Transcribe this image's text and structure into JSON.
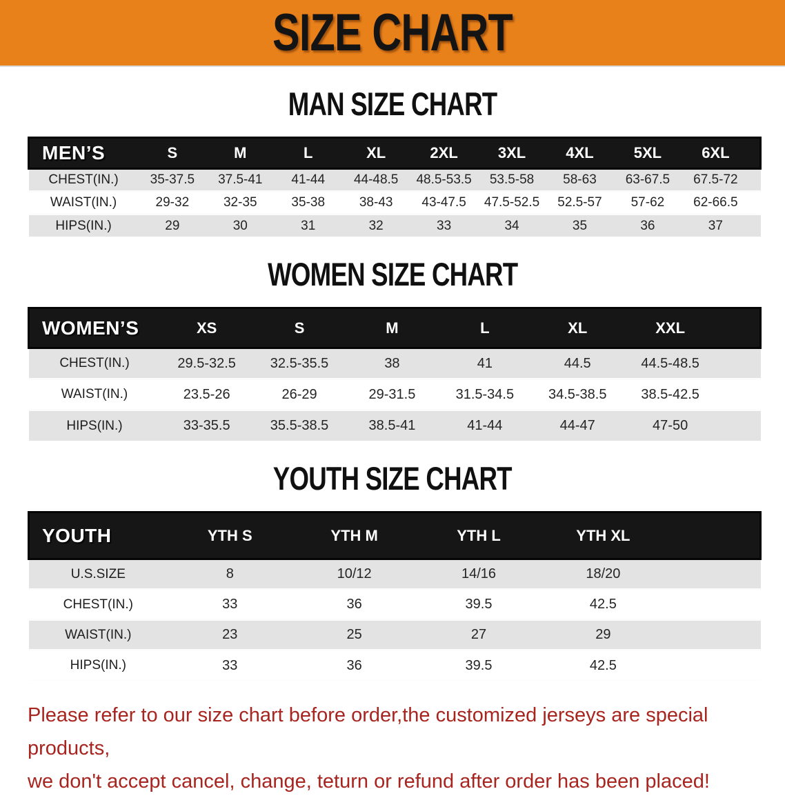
{
  "banner": {
    "title": "SIZE CHART"
  },
  "colors": {
    "banner_bg": "#E8811A",
    "banner_text": "#141414",
    "header_bar_bg": "#161616",
    "stripe_gray": "#e3e3e3",
    "disclaimer_red": "#A8241F"
  },
  "sections": [
    {
      "name": "mens",
      "heading": "MAN SIZE CHART",
      "corner_label": "MEN’S",
      "columns": [
        "S",
        "M",
        "L",
        "XL",
        "2XL",
        "3XL",
        "4XL",
        "5XL",
        "6XL"
      ],
      "rows": [
        {
          "label": "CHEST(IN.)",
          "values": [
            "35-37.5",
            "37.5-41",
            "41-44",
            "44-48.5",
            "48.5-53.5",
            "53.5-58",
            "58-63",
            "63-67.5",
            "67.5-72"
          ]
        },
        {
          "label": "WAIST(IN.)",
          "values": [
            "29-32",
            "32-35",
            "35-38",
            "38-43",
            "43-47.5",
            "47.5-52.5",
            "52.5-57",
            "57-62",
            "62-66.5"
          ]
        },
        {
          "label": "HIPS(IN.)",
          "values": [
            "29",
            "30",
            "31",
            "32",
            "33",
            "34",
            "35",
            "36",
            "37"
          ]
        }
      ]
    },
    {
      "name": "womens",
      "heading": "WOMEN SIZE CHART",
      "corner_label": "WOMEN’S",
      "columns": [
        "XS",
        "S",
        "M",
        "L",
        "XL",
        "XXL"
      ],
      "rows": [
        {
          "label": "CHEST(IN.)",
          "values": [
            "29.5-32.5",
            "32.5-35.5",
            "38",
            "41",
            "44.5",
            "44.5-48.5"
          ]
        },
        {
          "label": "WAIST(IN.)",
          "values": [
            "23.5-26",
            "26-29",
            "29-31.5",
            "31.5-34.5",
            "34.5-38.5",
            "38.5-42.5"
          ]
        },
        {
          "label": "HIPS(IN.)",
          "values": [
            "33-35.5",
            "35.5-38.5",
            "38.5-41",
            "41-44",
            "44-47",
            "47-50"
          ]
        }
      ]
    },
    {
      "name": "youth",
      "heading": "YOUTH SIZE CHART",
      "corner_label": "YOUTH",
      "columns": [
        "YTH S",
        "YTH M",
        "YTH L",
        "YTH XL"
      ],
      "rows": [
        {
          "label": "U.S.SIZE",
          "values": [
            "8",
            "10/12",
            "14/16",
            "18/20"
          ]
        },
        {
          "label": "CHEST(IN.)",
          "values": [
            "33",
            "36",
            "39.5",
            "42.5"
          ]
        },
        {
          "label": "WAIST(IN.)",
          "values": [
            "23",
            "25",
            "27",
            "29"
          ]
        },
        {
          "label": "HIPS(IN.)",
          "values": [
            "33",
            "36",
            "39.5",
            "42.5"
          ]
        }
      ]
    }
  ],
  "disclaimer": {
    "line1": "Please refer to our size chart before order,the customized jerseys are special products,",
    "line2": "we don't accept cancel, change, teturn or refund after order has been placed!"
  }
}
